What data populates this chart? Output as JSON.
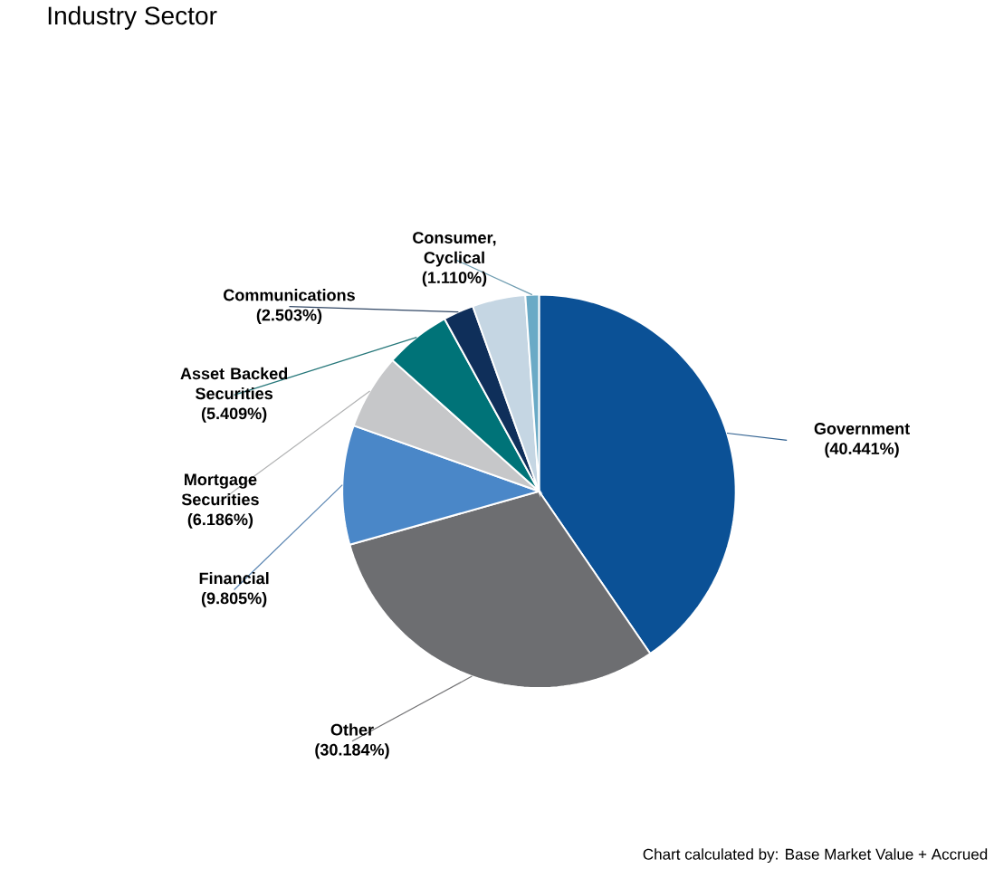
{
  "chart_data": {
    "type": "pie",
    "title": "Industry Sector",
    "categories": [
      "Government",
      "Other",
      "Financial",
      "Mortgage Securities",
      "Asset Backed Securities",
      "Communications",
      null,
      "Consumer, Cyclical"
    ],
    "values": [
      40.441,
      30.184,
      9.805,
      6.186,
      5.409,
      2.503,
      4.362,
      1.11
    ],
    "colors": [
      "#0b5196",
      "#6d6e71",
      "#4a87c8",
      "#c6c7c9",
      "#007378",
      "#0f2f5a",
      "#c5d6e3",
      "#6aaac6"
    ],
    "value_labels": [
      "(40.441%)",
      "(30.184%)",
      "(9.805%)",
      "(6.186%)",
      "(5.409%)",
      "(2.503%)",
      null,
      "(1.110%)"
    ],
    "annotations": [
      "Chart calculated by: Base Market Value + Accrued"
    ]
  }
}
